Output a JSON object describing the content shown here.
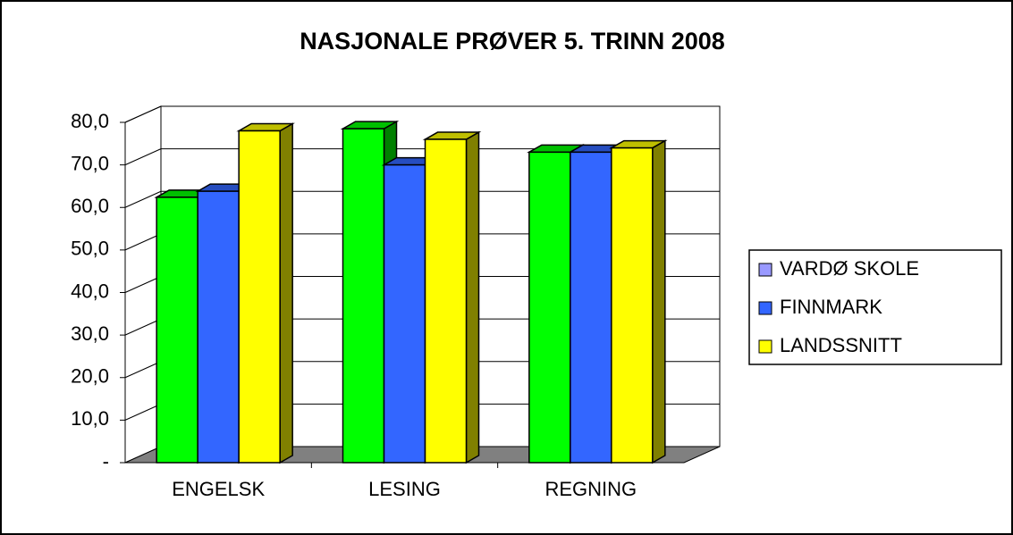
{
  "chart_data": {
    "type": "bar3d",
    "title": "NASJONALE PRØVER 5. TRINN 2008",
    "categories": [
      "ENGELSK",
      "LESING",
      "REGNING"
    ],
    "series": [
      {
        "name": "VARDØ SKOLE",
        "color": "#00ff00",
        "legend_color": "#9999ff",
        "values": [
          62.4,
          78.5,
          73
        ]
      },
      {
        "name": "FINNMARK",
        "color": "#3366ff",
        "values": [
          63.8,
          70,
          73
        ]
      },
      {
        "name": "LANDSSNITT",
        "color": "#ffff00",
        "values": [
          78,
          76,
          74
        ]
      }
    ],
    "ylim": [
      0,
      80
    ],
    "yticks": [
      {
        "value": 0,
        "label": "-"
      },
      {
        "value": 10,
        "label": "10,0"
      },
      {
        "value": 20,
        "label": "20,0"
      },
      {
        "value": 30,
        "label": "30,0"
      },
      {
        "value": 40,
        "label": "40,0"
      },
      {
        "value": 50,
        "label": "50,0"
      },
      {
        "value": 60,
        "label": "60,0"
      },
      {
        "value": 70,
        "label": "70,0"
      },
      {
        "value": 80,
        "label": "80,0"
      }
    ],
    "grid": true,
    "legend": "right"
  }
}
